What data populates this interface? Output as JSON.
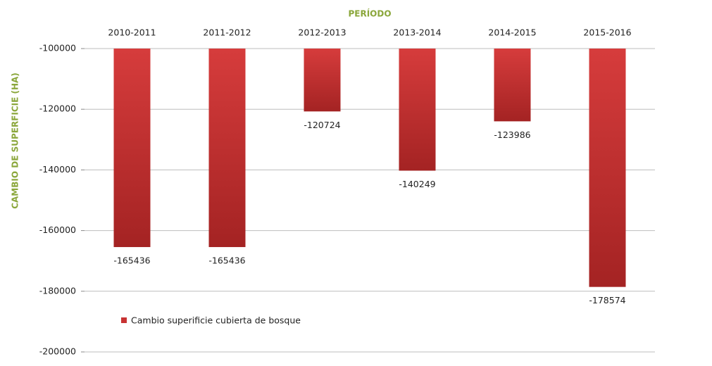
{
  "chart_data": {
    "type": "bar",
    "x_label": "PERÍODO",
    "y_label": "CAMBIO DE SUPERFICIE (HA)",
    "categories": [
      "2010-2011",
      "2011-2012",
      "2012-2013",
      "2013-2014",
      "2014-2015",
      "2015-2016"
    ],
    "series": [
      {
        "name": "Cambio superificie cubierta de bosque",
        "color": "#c83232",
        "values": [
          -165436,
          -165436,
          -120724,
          -140249,
          -123986,
          -178574
        ]
      }
    ],
    "ylim": [
      -200000,
      -100000
    ],
    "yticks": [
      -100000,
      -120000,
      -140000,
      -160000,
      -180000,
      -200000
    ],
    "grid": true,
    "legend": "bottom-left"
  }
}
